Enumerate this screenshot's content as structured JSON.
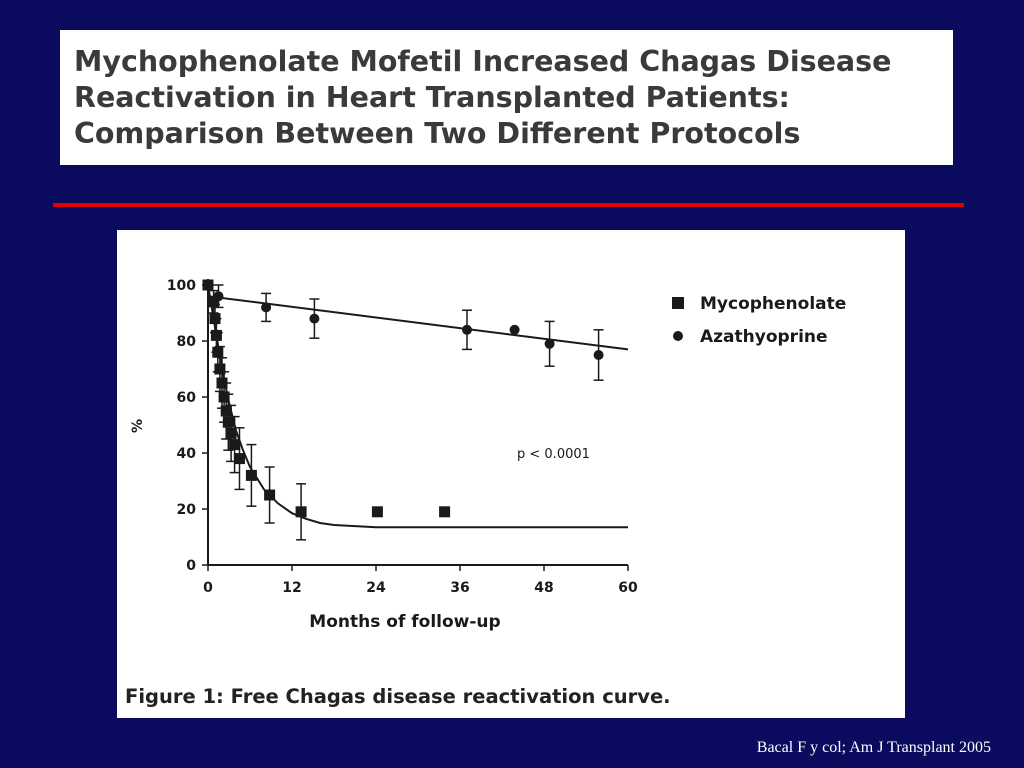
{
  "slide": {
    "title_lines": [
      "Mychophenolate Mofetil Increased Chagas Disease",
      "Reactivation in Heart Transplanted Patients:",
      "Comparison Between Two Different Protocols"
    ],
    "citation": "Bacal F y col; Am J Transplant 2005",
    "colors": {
      "background": "#0a0a5e",
      "divider": "#e00000",
      "panel": "#ffffff"
    }
  },
  "figure": {
    "caption": "Figure 1:  Free Chagas disease reactivation curve."
  },
  "chart_data": {
    "type": "scatter",
    "xlabel": "Months of follow-up",
    "ylabel": "%",
    "xlim": [
      0,
      60
    ],
    "ylim": [
      0,
      100
    ],
    "x_ticks": [
      "0",
      "12",
      "24",
      "36",
      "48",
      "60"
    ],
    "y_ticks": [
      "0",
      "20",
      "40",
      "60",
      "80",
      "100"
    ],
    "grid": false,
    "legend_position": "top-right",
    "annotation": "p < 0.0001",
    "series": [
      {
        "name": "Mycophenolate",
        "marker": "square",
        "points": [
          {
            "x": 0,
            "y": 100,
            "err": 0
          },
          {
            "x": 0.8,
            "y": 94,
            "err": 4
          },
          {
            "x": 1.0,
            "y": 88,
            "err": 5
          },
          {
            "x": 1.2,
            "y": 82,
            "err": 6
          },
          {
            "x": 1.4,
            "y": 76,
            "err": 7
          },
          {
            "x": 1.7,
            "y": 70,
            "err": 8
          },
          {
            "x": 2.0,
            "y": 65,
            "err": 9
          },
          {
            "x": 2.3,
            "y": 60,
            "err": 9
          },
          {
            "x": 2.6,
            "y": 55,
            "err": 10
          },
          {
            "x": 2.9,
            "y": 51,
            "err": 10
          },
          {
            "x": 3.3,
            "y": 47,
            "err": 10
          },
          {
            "x": 3.8,
            "y": 43,
            "err": 10
          },
          {
            "x": 4.5,
            "y": 38,
            "err": 11
          },
          {
            "x": 6.2,
            "y": 32,
            "err": 11
          },
          {
            "x": 8.8,
            "y": 25,
            "err": 10
          },
          {
            "x": 13.3,
            "y": 19,
            "err": 10
          },
          {
            "x": 24.2,
            "y": 19
          },
          {
            "x": 33.8,
            "y": 19
          }
        ],
        "fit_curve": [
          [
            0,
            100
          ],
          [
            1,
            85
          ],
          [
            2,
            70
          ],
          [
            3,
            58
          ],
          [
            4,
            48
          ],
          [
            5,
            41
          ],
          [
            6,
            35
          ],
          [
            8,
            27
          ],
          [
            10,
            22
          ],
          [
            12,
            18.5
          ],
          [
            14,
            16.5
          ],
          [
            16,
            15
          ],
          [
            18,
            14.3
          ],
          [
            20,
            14
          ],
          [
            24,
            13.5
          ],
          [
            60,
            13.5
          ]
        ]
      },
      {
        "name": "Azathyoprine",
        "marker": "circle",
        "points": [
          {
            "x": 0,
            "y": 100,
            "err": 0
          },
          {
            "x": 1.5,
            "y": 96,
            "err": 4
          },
          {
            "x": 8.3,
            "y": 92,
            "err": 5
          },
          {
            "x": 15.2,
            "y": 88,
            "err": 7
          },
          {
            "x": 37,
            "y": 84,
            "err": 7
          },
          {
            "x": 43.8,
            "y": 84,
            "err": 0
          },
          {
            "x": 48.8,
            "y": 79,
            "err": 8
          },
          {
            "x": 55.8,
            "y": 75,
            "err": 9
          }
        ],
        "fit_line": [
          [
            0,
            96
          ],
          [
            60,
            77
          ]
        ]
      }
    ]
  }
}
